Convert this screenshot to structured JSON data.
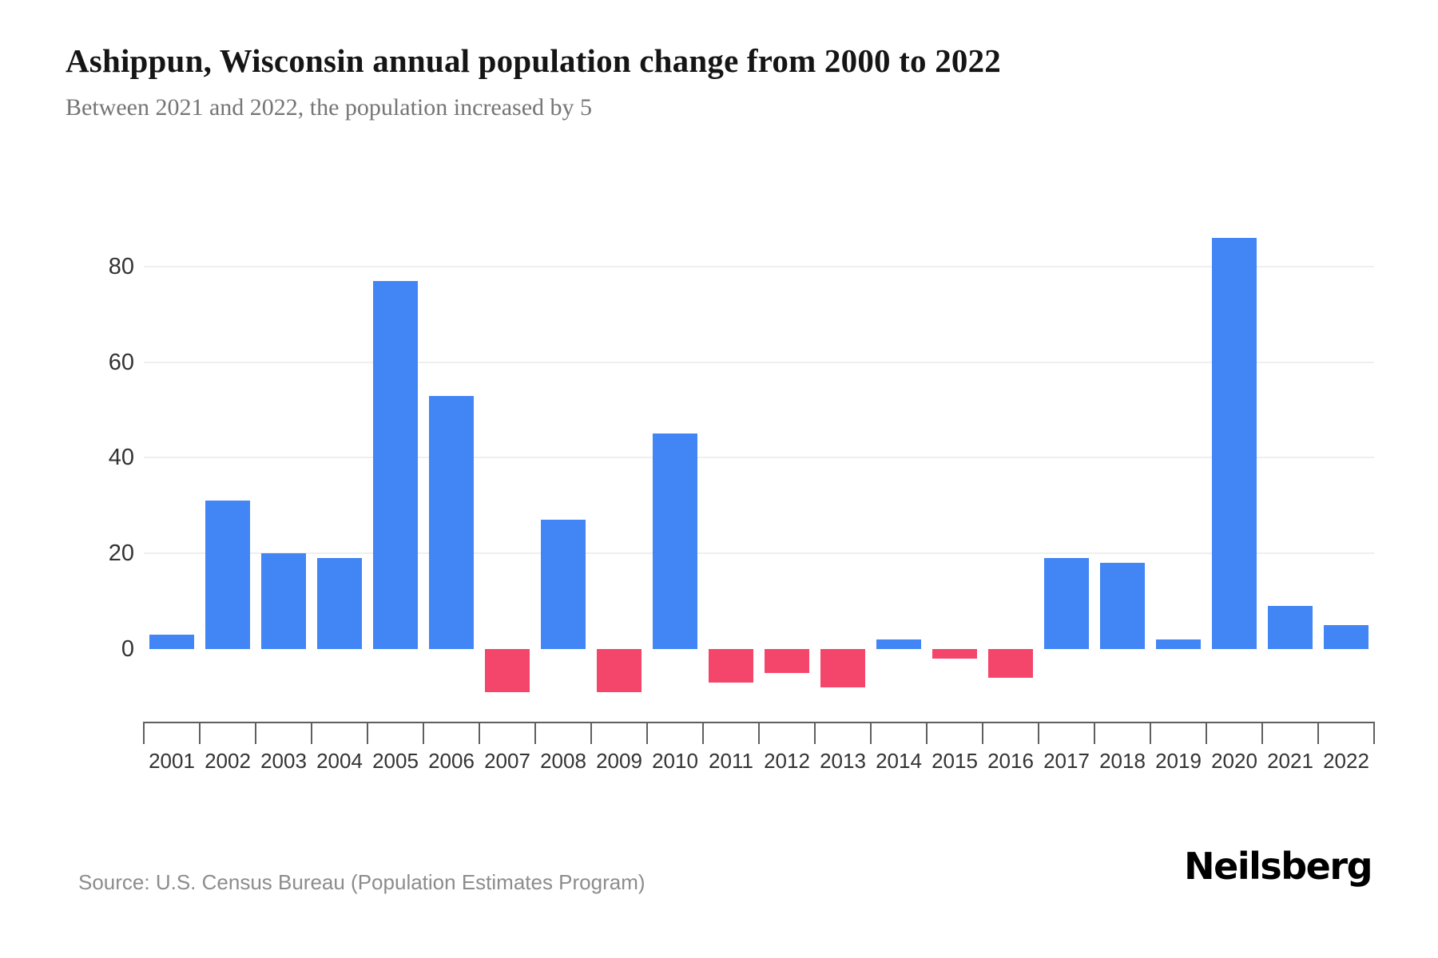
{
  "title": "Ashippun, Wisconsin annual population change from 2000 to 2022",
  "subtitle": "Between 2021 and 2022, the population increased by 5",
  "source": "Source: U.S. Census Bureau (Population Estimates Program)",
  "brand": "Neilsberg",
  "chart_data": {
    "type": "bar",
    "title": "Ashippun, Wisconsin annual population change from 2000 to 2022",
    "subtitle": "Between 2021 and 2022, the population increased by 5",
    "categories": [
      "2001",
      "2002",
      "2003",
      "2004",
      "2005",
      "2006",
      "2007",
      "2008",
      "2009",
      "2010",
      "2011",
      "2012",
      "2013",
      "2014",
      "2015",
      "2016",
      "2017",
      "2018",
      "2019",
      "2020",
      "2021",
      "2022"
    ],
    "values": [
      3,
      31,
      20,
      19,
      77,
      53,
      -9,
      27,
      -9,
      45,
      -7,
      -5,
      -8,
      2,
      -2,
      -6,
      19,
      18,
      2,
      86,
      9,
      5
    ],
    "xlabel": "",
    "ylabel": "",
    "yticks": [
      0,
      20,
      40,
      60,
      80
    ],
    "ylim": [
      -15,
      95
    ],
    "grid": "horizontal",
    "legend": "none",
    "colors": {
      "positive": "#4285f4",
      "negative": "#f4456b"
    }
  }
}
